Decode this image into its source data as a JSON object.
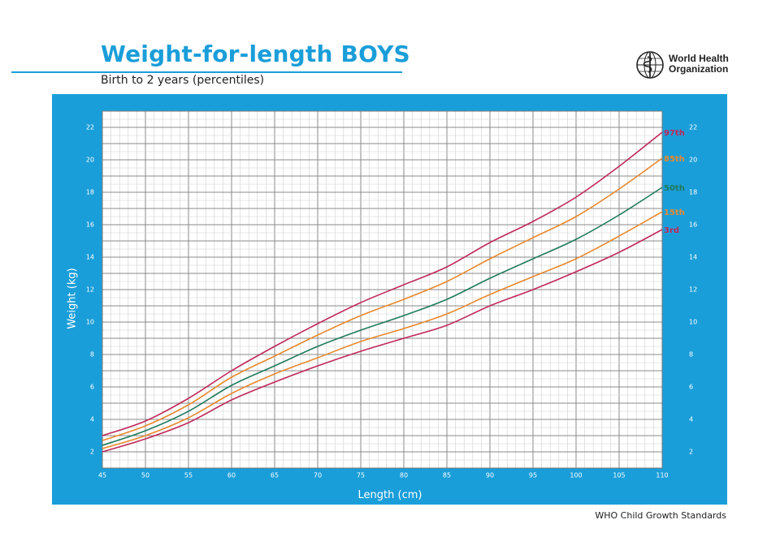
{
  "header": {
    "title": "Weight-for-length BOYS",
    "subtitle": "Birth to 2 years (percentiles)"
  },
  "logo": {
    "line1": "World Health",
    "line2": "Organization",
    "icon": "who-emblem-icon"
  },
  "footer": {
    "text": "WHO Child Growth Standards"
  },
  "colors": {
    "brand_blue": "#1a9ed9",
    "p97": "#c0285a",
    "p85": "#e8892e",
    "p50": "#1f7a5c",
    "p15": "#e8892e",
    "p3": "#c0285a"
  },
  "chart_data": {
    "type": "line",
    "title": "Weight-for-length BOYS",
    "subtitle": "Birth to 2 years (percentiles)",
    "xlabel": "Length (cm)",
    "ylabel": "Weight (kg)",
    "xlim": [
      45,
      110
    ],
    "ylim": [
      1,
      23
    ],
    "grid": true,
    "x_ticks": [
      45,
      50,
      55,
      60,
      65,
      70,
      75,
      80,
      85,
      90,
      95,
      100,
      105,
      110
    ],
    "y_ticks": [
      2,
      4,
      6,
      8,
      10,
      12,
      14,
      16,
      18,
      20,
      22
    ],
    "x": [
      45,
      50,
      55,
      60,
      65,
      70,
      75,
      80,
      85,
      90,
      95,
      100,
      105,
      110
    ],
    "series": [
      {
        "name": "97th",
        "color": "#c0285a",
        "values": [
          3.0,
          3.9,
          5.3,
          7.0,
          8.5,
          9.9,
          11.2,
          12.3,
          13.4,
          14.9,
          16.2,
          17.7,
          19.6,
          21.7
        ]
      },
      {
        "name": "85th",
        "color": "#e8892e",
        "values": [
          2.7,
          3.6,
          4.9,
          6.6,
          7.9,
          9.2,
          10.4,
          11.4,
          12.5,
          13.9,
          15.2,
          16.5,
          18.2,
          20.1
        ]
      },
      {
        "name": "50th",
        "color": "#1f7a5c",
        "values": [
          2.4,
          3.3,
          4.5,
          6.1,
          7.3,
          8.5,
          9.5,
          10.4,
          11.4,
          12.7,
          13.9,
          15.1,
          16.6,
          18.3
        ]
      },
      {
        "name": "15th",
        "color": "#e8892e",
        "values": [
          2.2,
          3.0,
          4.1,
          5.6,
          6.8,
          7.8,
          8.8,
          9.6,
          10.5,
          11.7,
          12.8,
          13.9,
          15.3,
          16.8
        ]
      },
      {
        "name": "3rd",
        "color": "#c0285a",
        "values": [
          2.0,
          2.8,
          3.8,
          5.2,
          6.3,
          7.3,
          8.2,
          9.0,
          9.8,
          11.0,
          12.0,
          13.1,
          14.3,
          15.7
        ]
      }
    ]
  }
}
